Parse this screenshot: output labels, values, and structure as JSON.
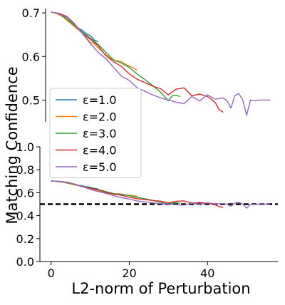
{
  "chart_data": {
    "type": "line",
    "xlabel": "L2-norm of Perturbation",
    "ylabel": "Matching Confidence",
    "grid": false,
    "legend_placement": "left",
    "x_ticks": [
      0,
      20,
      40
    ],
    "panels": [
      {
        "name": "top",
        "ylim": [
          0.45,
          0.71
        ],
        "y_ticks": [
          0.5,
          0.6,
          0.7
        ],
        "y_tick_labels": [
          "0.5",
          "0.6",
          "0.7"
        ]
      },
      {
        "name": "bottom",
        "ylim": [
          0.0,
          1.0
        ],
        "y_ticks": [
          0.0,
          0.2,
          0.4,
          0.6,
          0.8,
          1.0
        ],
        "y_tick_labels": [
          "0.0",
          "0.2",
          "0.4",
          "0.6",
          "0.8",
          "1.0"
        ],
        "reference_line": 0.5
      }
    ],
    "xlim": [
      -2.5,
      58
    ],
    "series": [
      {
        "name": "ε=1.0",
        "color": "#1f77b4",
        "x": [
          0,
          1,
          2,
          3,
          4,
          5,
          6,
          7,
          8,
          9,
          10,
          11,
          12
        ],
        "y": [
          0.702,
          0.7,
          0.697,
          0.693,
          0.686,
          0.679,
          0.673,
          0.665,
          0.66,
          0.652,
          0.648,
          0.638,
          0.634
        ]
      },
      {
        "name": "ε=2.0",
        "color": "#ff7f0e",
        "x": [
          0,
          1,
          2,
          3,
          4,
          5,
          6,
          7,
          8,
          9,
          10,
          11,
          12,
          13,
          14,
          15,
          16,
          17,
          18,
          19,
          20,
          21,
          22
        ],
        "y": [
          0.702,
          0.7,
          0.696,
          0.691,
          0.683,
          0.676,
          0.668,
          0.661,
          0.653,
          0.643,
          0.633,
          0.629,
          0.62,
          0.612,
          0.604,
          0.597,
          0.592,
          0.59,
          0.588,
          0.582,
          0.578,
          0.574,
          0.568
        ]
      },
      {
        "name": "ε=3.0",
        "color": "#2ca02c",
        "x": [
          0,
          2,
          4,
          6,
          8,
          10,
          12,
          14,
          16,
          18,
          20,
          22,
          24,
          26,
          28,
          29,
          30,
          31,
          32,
          33
        ],
        "y": [
          0.702,
          0.698,
          0.686,
          0.671,
          0.656,
          0.642,
          0.628,
          0.61,
          0.592,
          0.585,
          0.575,
          0.56,
          0.547,
          0.533,
          0.518,
          0.508,
          0.498,
          0.51,
          0.511,
          0.508
        ]
      },
      {
        "name": "ε=4.0",
        "color": "#d62728",
        "x": [
          0,
          2,
          4,
          6,
          8,
          10,
          12,
          14,
          16,
          18,
          20,
          22,
          24,
          26,
          28,
          30,
          32,
          34,
          36,
          38,
          40,
          41,
          42,
          43,
          44
        ],
        "y": [
          0.702,
          0.699,
          0.692,
          0.675,
          0.653,
          0.64,
          0.625,
          0.602,
          0.588,
          0.577,
          0.56,
          0.548,
          0.54,
          0.532,
          0.526,
          0.512,
          0.525,
          0.528,
          0.51,
          0.514,
          0.508,
          0.502,
          0.494,
          0.478,
          0.472
        ]
      },
      {
        "name": "ε=5.0",
        "color": "#9467bd",
        "x": [
          0,
          2,
          4,
          6,
          8,
          10,
          12,
          14,
          16,
          18,
          20,
          22,
          24,
          26,
          28,
          30,
          32,
          34,
          36,
          38,
          40,
          42,
          44,
          45,
          46,
          47,
          48,
          49,
          50,
          51,
          52,
          53,
          54,
          55,
          56
        ],
        "y": [
          0.702,
          0.698,
          0.69,
          0.674,
          0.653,
          0.63,
          0.61,
          0.595,
          0.575,
          0.555,
          0.545,
          0.528,
          0.52,
          0.512,
          0.505,
          0.5,
          0.495,
          0.492,
          0.508,
          0.498,
          0.512,
          0.502,
          0.505,
          0.498,
          0.482,
          0.51,
          0.515,
          0.501,
          0.465,
          0.5,
          0.498,
          0.5,
          0.5,
          0.5,
          0.5
        ]
      }
    ]
  }
}
